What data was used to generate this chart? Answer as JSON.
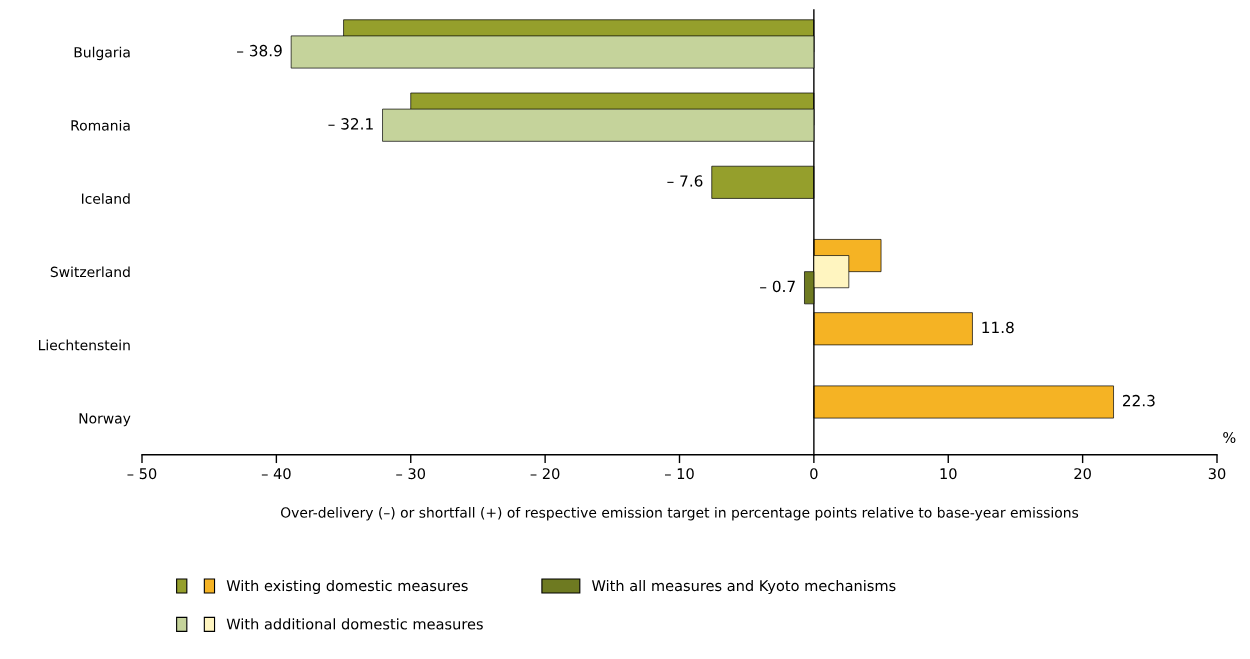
{
  "chart_data": {
    "type": "bar",
    "orientation": "horizontal",
    "categories": [
      "Bulgaria",
      "Romania",
      "Iceland",
      "Switzerland",
      "Liechtenstein",
      "Norway"
    ],
    "series": [
      {
        "name": "With existing domestic measures",
        "color": "#959f2c",
        "colors": [
          "#959f2c",
          "#959f2c",
          "#959f2c",
          "#f5b324",
          "#f5b324",
          "#f5b324"
        ],
        "values": [
          -35,
          -30,
          -7.6,
          5.0,
          11.8,
          22.3
        ],
        "value_labels": [
          null,
          null,
          "– 7.6",
          null,
          "11.8",
          "22.3"
        ]
      },
      {
        "name": "With additional domestic measures",
        "color": "#c5d39b",
        "colors": [
          "#c5d39b",
          "#c5d39b",
          null,
          "#fff5c0",
          null,
          null
        ],
        "values": [
          -38.9,
          -32.1,
          null,
          2.6,
          null,
          null
        ],
        "value_labels": [
          "– 38.9",
          "– 32.1",
          null,
          null,
          null,
          null
        ]
      },
      {
        "name": "With all measures and Kyoto mechanisms",
        "color": "#6e7a21",
        "colors": [
          null,
          null,
          null,
          "#6e7a21",
          null,
          null
        ],
        "values": [
          null,
          null,
          null,
          -0.7,
          null,
          null
        ],
        "value_labels": [
          null,
          null,
          null,
          "– 0.7",
          null,
          null
        ]
      }
    ],
    "xlim": [
      -50,
      30
    ],
    "xticks": [
      {
        "value": -50,
        "label": "– 50"
      },
      {
        "value": -40,
        "label": "– 40"
      },
      {
        "value": -30,
        "label": "– 30"
      },
      {
        "value": -20,
        "label": "– 20"
      },
      {
        "value": -10,
        "label": "– 10"
      },
      0,
      10,
      20,
      30
    ],
    "xlabel": "Over-delivery (–) or shortfall (+) of respective emission target in percentage points relative to base-year emissions",
    "annotations": [
      "%"
    ],
    "legend": "bottom"
  }
}
